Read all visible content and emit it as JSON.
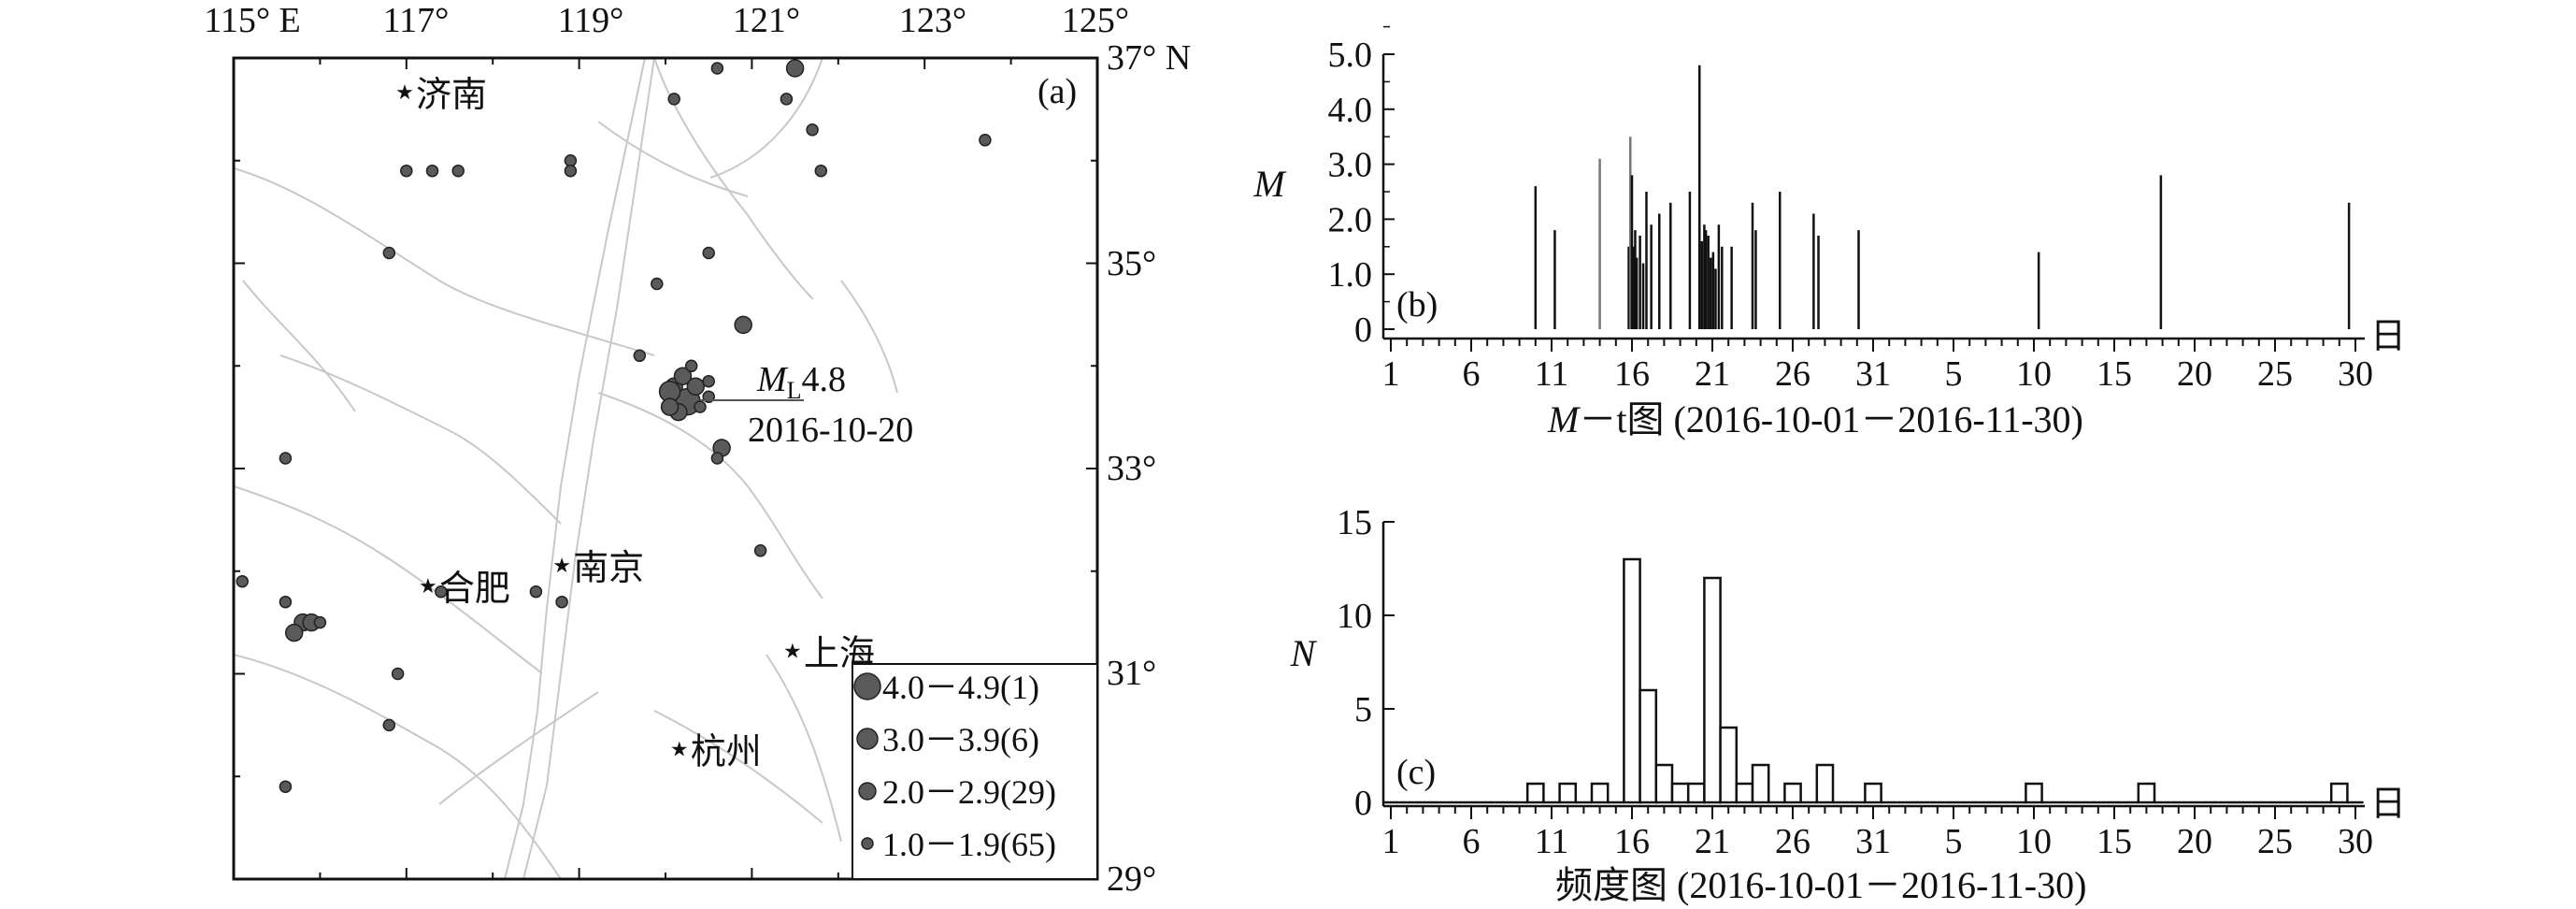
{
  "map": {
    "panel_label": "(a)",
    "lon_ticks": [
      "115° E",
      "117°",
      "119°",
      "121°",
      "123°",
      "125°"
    ],
    "lat_ticks": [
      "37° N",
      "35°",
      "33°",
      "31°",
      "29°"
    ],
    "cities": [
      {
        "name": "济南",
        "lon": 116.98,
        "lat": 36.67
      },
      {
        "name": "合肥",
        "lon": 117.25,
        "lat": 31.86
      },
      {
        "name": "南京",
        "lon": 118.8,
        "lat": 32.06
      },
      {
        "name": "上海",
        "lon": 121.47,
        "lat": 31.23
      },
      {
        "name": "杭州",
        "lon": 120.16,
        "lat": 30.27
      }
    ],
    "mainshock": {
      "label_prefix": "M",
      "label_sub": "L",
      "label_mag": "4.8",
      "date": "2016-10-20",
      "lon": 120.25,
      "lat": 33.65
    },
    "legend": [
      {
        "label": "4.0－4.9(1)",
        "class": 4
      },
      {
        "label": "3.0－3.9(6)",
        "class": 3
      },
      {
        "label": "2.0－2.9(29)",
        "class": 2
      },
      {
        "label": "1.0－1.9(65)",
        "class": 1
      }
    ],
    "colors": {
      "fault": "#c8c8c8",
      "event": "#5a5a5a",
      "event_stroke": "#222222"
    },
    "events": [
      [
        121.5,
        36.9,
        2
      ],
      [
        120.6,
        36.9,
        1
      ],
      [
        120.1,
        36.6,
        1
      ],
      [
        121.4,
        36.6,
        1
      ],
      [
        121.7,
        36.3,
        1
      ],
      [
        121.8,
        35.9,
        1
      ],
      [
        123.7,
        36.2,
        1
      ],
      [
        117.3,
        35.9,
        1
      ],
      [
        117,
        35.9,
        1
      ],
      [
        117.6,
        35.9,
        1
      ],
      [
        118.9,
        36.0,
        1
      ],
      [
        118.9,
        35.9,
        1
      ],
      [
        116.8,
        35.1,
        1
      ],
      [
        120.5,
        35.1,
        1
      ],
      [
        119.9,
        34.8,
        1
      ],
      [
        120.9,
        34.4,
        2
      ],
      [
        119.7,
        34.1,
        1
      ],
      [
        120.1,
        33.8,
        2
      ],
      [
        120.25,
        33.65,
        4
      ],
      [
        120.05,
        33.75,
        3
      ],
      [
        120.2,
        33.9,
        2
      ],
      [
        120.35,
        33.8,
        2
      ],
      [
        120.5,
        33.7,
        1
      ],
      [
        120.3,
        34.0,
        1
      ],
      [
        120.15,
        33.55,
        2
      ],
      [
        120.4,
        33.6,
        1
      ],
      [
        120.05,
        33.6,
        2
      ],
      [
        120.5,
        33.85,
        1
      ],
      [
        120.65,
        33.2,
        2
      ],
      [
        120.6,
        33.1,
        1
      ],
      [
        121.1,
        32.2,
        1
      ],
      [
        115.6,
        33.1,
        1
      ],
      [
        115.1,
        31.9,
        1
      ],
      [
        115.6,
        31.7,
        1
      ],
      [
        115.8,
        31.5,
        2
      ],
      [
        115.9,
        31.5,
        2
      ],
      [
        115.7,
        31.4,
        2
      ],
      [
        116.0,
        31.5,
        1
      ],
      [
        116.9,
        31.0,
        1
      ],
      [
        116.8,
        30.5,
        1
      ],
      [
        115.6,
        29.9,
        1
      ],
      [
        117.4,
        31.8,
        1
      ],
      [
        118.5,
        31.8,
        1
      ],
      [
        118.8,
        31.7,
        1
      ]
    ]
  },
  "mt": {
    "panel_label": "(b)",
    "ylabel": "M",
    "yticks": [
      "5.0",
      "4.0",
      "3.0",
      "2.0",
      "1.0",
      "0"
    ],
    "xticks": [
      "1",
      "6",
      "11",
      "16",
      "21",
      "26",
      "31",
      "5",
      "10",
      "15",
      "20",
      "25",
      "30"
    ],
    "xunit": "日",
    "caption_italic": "M",
    "caption_rest": "－t图 (2016-10-01－2016-11-30)"
  },
  "freq": {
    "panel_label": "(c)",
    "ylabel": "N",
    "yticks": [
      "15",
      "10",
      "5",
      "0"
    ],
    "xticks": [
      "1",
      "6",
      "11",
      "16",
      "21",
      "26",
      "31",
      "5",
      "10",
      "15",
      "20",
      "25",
      "30"
    ],
    "xunit": "日",
    "caption": "频度图 (2016-10-01－2016-11-30)"
  },
  "chart_data": [
    {
      "type": "bar",
      "title": "M－t图 (2016-10-01－2016-11-30)",
      "xlabel": "日",
      "ylabel": "M",
      "ylim": [
        0,
        5
      ],
      "x_unit": "day index (1 = 2016-10-01, 61 = 2016-11-30)",
      "x": [
        10,
        11.2,
        14,
        15.8,
        15.9,
        16,
        16.1,
        16.2,
        16.3,
        16.5,
        16.7,
        16.9,
        17.2,
        17.7,
        18.4,
        19.6,
        20.2,
        20.35,
        20.5,
        20.6,
        20.75,
        20.9,
        21.05,
        21.2,
        21.4,
        21.6,
        22.2,
        23.5,
        23.7,
        25.2,
        27.3,
        27.6,
        30.1,
        41.3,
        48.9,
        60.6
      ],
      "values": [
        2.6,
        1.8,
        3.1,
        1.5,
        3.5,
        2.8,
        1.5,
        1.8,
        1.3,
        1.7,
        1.2,
        2.5,
        1.9,
        2.1,
        2.3,
        2.5,
        4.8,
        1.6,
        1.9,
        1.8,
        1.7,
        1.3,
        1.4,
        1.1,
        1.9,
        1.5,
        1.5,
        2.3,
        1.8,
        2.5,
        2.1,
        1.7,
        1.8,
        1.4,
        2.8,
        2.3
      ]
    },
    {
      "type": "bar",
      "title": "频度图 (2016-10-01－2016-11-30)",
      "xlabel": "日",
      "ylabel": "N",
      "ylim": [
        0,
        15
      ],
      "x_unit": "day index (1 = 2016-10-01, 61 = 2016-11-30)",
      "x": [
        1,
        2,
        3,
        4,
        5,
        6,
        7,
        8,
        9,
        10,
        11,
        12,
        13,
        14,
        15,
        16,
        17,
        18,
        19,
        20,
        21,
        22,
        23,
        24,
        25,
        26,
        27,
        28,
        29,
        30,
        31,
        32,
        33,
        34,
        35,
        36,
        37,
        38,
        39,
        40,
        41,
        42,
        43,
        44,
        45,
        46,
        47,
        48,
        49,
        50,
        51,
        52,
        53,
        54,
        55,
        56,
        57,
        58,
        59,
        60,
        61
      ],
      "values": [
        0,
        0,
        0,
        0,
        0,
        0,
        0,
        0,
        0,
        1,
        0,
        1,
        0,
        1,
        0,
        13,
        6,
        2,
        1,
        1,
        12,
        4,
        1,
        2,
        0,
        1,
        0,
        2,
        0,
        0,
        1,
        0,
        0,
        0,
        0,
        0,
        0,
        0,
        0,
        0,
        1,
        0,
        0,
        0,
        0,
        0,
        0,
        1,
        0,
        0,
        0,
        0,
        0,
        0,
        0,
        0,
        0,
        0,
        0,
        1,
        0
      ]
    }
  ]
}
